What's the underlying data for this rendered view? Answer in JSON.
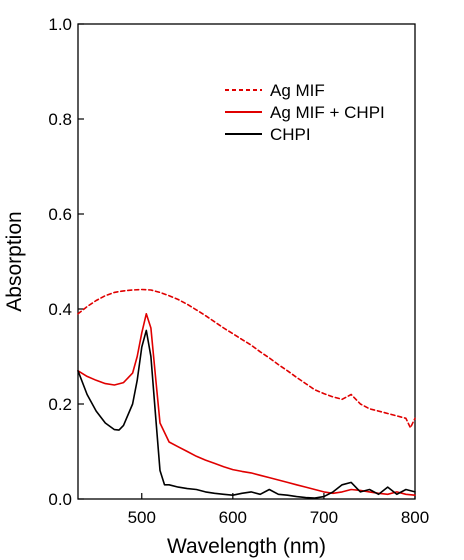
{
  "chart_data": {
    "type": "line",
    "xlabel": "Wavelength (nm)",
    "ylabel": "Absorption",
    "xlim": [
      430,
      800
    ],
    "ylim": [
      0.0,
      1.0
    ],
    "x_ticks": [
      500,
      600,
      700,
      800
    ],
    "y_ticks": [
      0.0,
      0.2,
      0.4,
      0.6,
      0.8,
      1.0
    ],
    "x_tick_labels": [
      "500",
      "600",
      "700",
      "800"
    ],
    "y_tick_labels": [
      "0.0",
      "0.2",
      "0.4",
      "0.6",
      "0.8",
      "1.0"
    ],
    "grid": false,
    "legend_position": "top-right",
    "series": [
      {
        "name": "Ag MIF",
        "color": "#e00000",
        "style": "dashed",
        "x": [
          430,
          440,
          450,
          460,
          470,
          480,
          490,
          500,
          510,
          520,
          530,
          540,
          550,
          560,
          570,
          580,
          590,
          600,
          610,
          620,
          630,
          640,
          650,
          660,
          670,
          680,
          690,
          700,
          710,
          720,
          730,
          740,
          750,
          760,
          770,
          780,
          790,
          795,
          800
        ],
        "y": [
          0.39,
          0.405,
          0.418,
          0.428,
          0.435,
          0.438,
          0.44,
          0.441,
          0.44,
          0.435,
          0.428,
          0.42,
          0.41,
          0.398,
          0.386,
          0.373,
          0.36,
          0.348,
          0.336,
          0.324,
          0.31,
          0.297,
          0.283,
          0.27,
          0.256,
          0.243,
          0.23,
          0.222,
          0.215,
          0.21,
          0.22,
          0.2,
          0.19,
          0.185,
          0.18,
          0.175,
          0.17,
          0.15,
          0.17
        ]
      },
      {
        "name": "Ag MIF + CHPI",
        "color": "#e00000",
        "style": "solid",
        "x": [
          430,
          440,
          450,
          460,
          470,
          480,
          490,
          495,
          500,
          505,
          510,
          515,
          520,
          530,
          540,
          550,
          560,
          570,
          580,
          590,
          600,
          610,
          620,
          630,
          640,
          650,
          660,
          670,
          680,
          690,
          700,
          710,
          720,
          730,
          740,
          750,
          760,
          770,
          780,
          790,
          800
        ],
        "y": [
          0.27,
          0.258,
          0.25,
          0.243,
          0.24,
          0.245,
          0.265,
          0.3,
          0.35,
          0.39,
          0.36,
          0.26,
          0.16,
          0.12,
          0.11,
          0.1,
          0.09,
          0.082,
          0.075,
          0.068,
          0.062,
          0.058,
          0.055,
          0.05,
          0.045,
          0.04,
          0.035,
          0.03,
          0.025,
          0.02,
          0.015,
          0.012,
          0.015,
          0.02,
          0.018,
          0.015,
          0.012,
          0.01,
          0.015,
          0.01,
          0.008
        ]
      },
      {
        "name": "CHPI",
        "color": "#000000",
        "style": "solid",
        "x": [
          430,
          440,
          450,
          460,
          470,
          475,
          480,
          490,
          495,
          500,
          505,
          510,
          515,
          520,
          525,
          530,
          540,
          550,
          560,
          570,
          580,
          590,
          600,
          610,
          620,
          630,
          640,
          650,
          660,
          670,
          680,
          690,
          700,
          710,
          720,
          730,
          740,
          750,
          760,
          770,
          780,
          790,
          800
        ],
        "y": [
          0.27,
          0.22,
          0.185,
          0.16,
          0.146,
          0.145,
          0.155,
          0.2,
          0.25,
          0.32,
          0.355,
          0.3,
          0.18,
          0.06,
          0.03,
          0.03,
          0.025,
          0.022,
          0.02,
          0.015,
          0.012,
          0.01,
          0.008,
          0.012,
          0.015,
          0.01,
          0.02,
          0.01,
          0.008,
          0.005,
          0.003,
          0.002,
          0.005,
          0.015,
          0.03,
          0.035,
          0.015,
          0.02,
          0.01,
          0.025,
          0.01,
          0.02,
          0.015
        ]
      }
    ]
  }
}
